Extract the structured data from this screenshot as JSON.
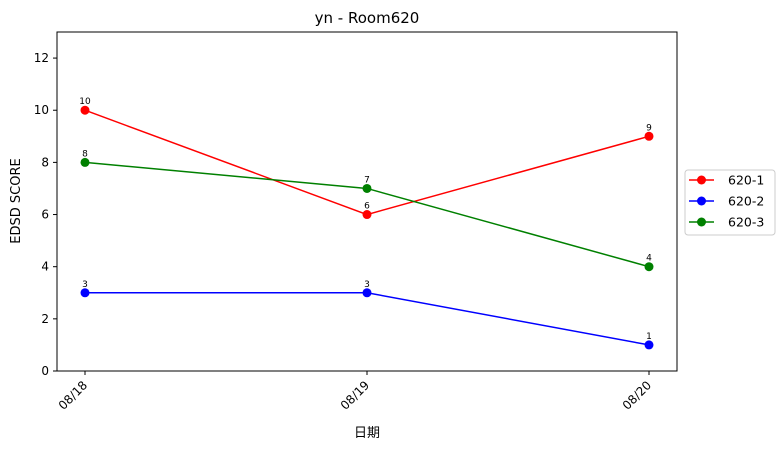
{
  "chart_data": {
    "type": "line",
    "title": "yn - Room620",
    "xlabel": "日期",
    "ylabel": "EDSD SCORE",
    "categories": [
      "08/18",
      "08/19",
      "08/20"
    ],
    "ylim": [
      0,
      13
    ],
    "yticks": [
      0,
      2,
      4,
      6,
      8,
      10,
      12
    ],
    "grid": false,
    "legend_position": "right",
    "series": [
      {
        "name": "620-1",
        "color": "#ff0000",
        "values": [
          10,
          6,
          9
        ]
      },
      {
        "name": "620-2",
        "color": "#0000ff",
        "values": [
          3,
          3,
          1
        ]
      },
      {
        "name": "620-3",
        "color": "#008000",
        "values": [
          8,
          7,
          4
        ]
      }
    ]
  }
}
